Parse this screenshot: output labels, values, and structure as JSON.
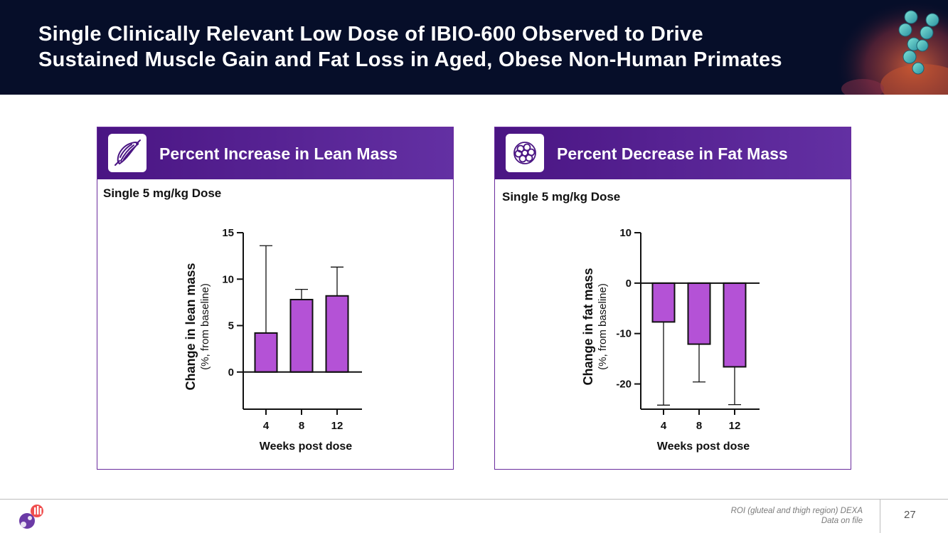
{
  "slide": {
    "title_line1": "Single Clinically Relevant Low Dose of IBIO-600 Observed to Drive",
    "title_line2": "Sustained Muscle Gain and Fat Loss in Aged, Obese Non-Human Primates"
  },
  "panels": {
    "left": {
      "title": "Percent Increase in Lean Mass",
      "icon": "muscle-fiber-icon",
      "dose": "Single 5 mg/kg Dose"
    },
    "right": {
      "title": "Percent Decrease in Fat Mass",
      "icon": "fat-cell-cluster-icon",
      "dose": "Single 5 mg/kg Dose"
    }
  },
  "colors": {
    "header_bg": "#060e29",
    "panel_accent": "#5a259a",
    "bar_fill": "#b452d6",
    "axis": "#111111"
  },
  "chart_data": [
    {
      "type": "bar",
      "categories": [
        "4",
        "8",
        "12"
      ],
      "values": [
        4.2,
        7.8,
        8.2
      ],
      "error_upper": [
        13.6,
        8.9,
        11.3
      ],
      "error_lower": [
        4.2,
        7.8,
        8.2
      ],
      "ylabel": "Change in lean mass",
      "ylabel_sub": "(%, from baseline)",
      "xlabel": "Weeks post dose",
      "ylim": [
        -4,
        15
      ],
      "yticks": [
        0,
        5,
        10,
        15
      ],
      "ytick_labels": [
        "0",
        "5",
        "10",
        "15"
      ],
      "grid": false
    },
    {
      "type": "bar",
      "categories": [
        "4",
        "8",
        "12"
      ],
      "values": [
        -7.7,
        -12.1,
        -16.6
      ],
      "error_upper": [
        -7.7,
        -12.1,
        -16.6
      ],
      "error_lower": [
        -24.2,
        -19.6,
        -24.1
      ],
      "ylabel": "Change in fat mass",
      "ylabel_sub": "(%, from baseline)",
      "xlabel": "Weeks post dose",
      "ylim": [
        -25,
        10
      ],
      "yticks": [
        10,
        0,
        -10,
        -20
      ],
      "ytick_labels": [
        "10",
        "0",
        "-10",
        "-20"
      ],
      "grid": false
    }
  ],
  "footer": {
    "note_line1": "ROI (gluteal and thigh region) DEXA",
    "note_line2": "Data on file",
    "page_number": "27"
  }
}
